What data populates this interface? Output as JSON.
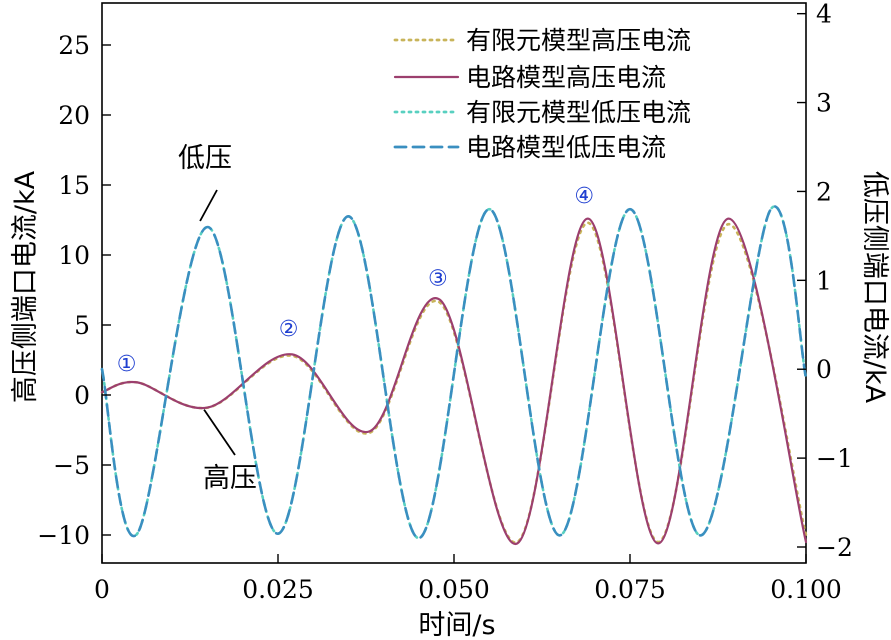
{
  "chart_data": {
    "type": "line",
    "xlabel": "时间/s",
    "ylabel_left": "高压侧端口电流/kA",
    "ylabel_right": "低压侧端口电流/kA",
    "xlim": [
      0,
      0.1
    ],
    "ylim_left": [
      -12,
      28
    ],
    "ylim_right": [
      -2.18,
      4.12
    ],
    "x_ticks": [
      0,
      0.025,
      0.05,
      0.075,
      0.1
    ],
    "x_tick_labels": [
      "0",
      "0.025",
      "0.050",
      "0.075",
      "0.100"
    ],
    "y_left_ticks": [
      -10,
      -5,
      0,
      5,
      10,
      15,
      20,
      25
    ],
    "y_left_tick_labels": [
      "−10",
      "−5",
      "0",
      "5",
      "10",
      "15",
      "20",
      "25"
    ],
    "y_right_ticks": [
      -2,
      -1,
      0,
      1,
      2,
      3,
      4
    ],
    "y_right_tick_labels": [
      "−2",
      "−1",
      "0",
      "1",
      "2",
      "3",
      "4"
    ],
    "grid": false,
    "legend_position": "top-right",
    "series": [
      {
        "name": "有限元模型高压电流",
        "axis": "left",
        "color": "#c8b45a",
        "style": "dotted",
        "x": [
          0,
          0.005,
          0.015,
          0.027,
          0.038,
          0.048,
          0.059,
          0.069,
          0.079,
          0.089,
          0.1
        ],
        "y": [
          0.2,
          0.9,
          -0.9,
          2.8,
          -2.7,
          6.6,
          -10.5,
          12.3,
          -10.5,
          12.2,
          -10.0
        ]
      },
      {
        "name": "电路模型高压电流",
        "axis": "left",
        "color": "#9c3f6e",
        "style": "solid",
        "x": [
          0,
          0.005,
          0.015,
          0.027,
          0.038,
          0.048,
          0.059,
          0.069,
          0.079,
          0.089,
          0.1
        ],
        "y": [
          0.2,
          0.9,
          -0.9,
          2.9,
          -2.6,
          6.8,
          -10.6,
          12.6,
          -10.6,
          12.6,
          -10.5
        ]
      },
      {
        "name": "有限元模型低压电流",
        "axis": "right",
        "color": "#58d0c0",
        "style": "dotted",
        "x": [
          0,
          0.005,
          0.015,
          0.025,
          0.035,
          0.045,
          0.055,
          0.065,
          0.075,
          0.085,
          0.095,
          0.1
        ],
        "y": [
          0.0,
          -1.85,
          1.6,
          -1.85,
          1.72,
          -1.9,
          1.8,
          -1.87,
          1.8,
          -1.87,
          1.8,
          -0.1
        ]
      },
      {
        "name": "电路模型低压电流",
        "axis": "right",
        "color": "#3a8fc0",
        "style": "dashed",
        "x": [
          0,
          0.005,
          0.015,
          0.025,
          0.035,
          0.045,
          0.055,
          0.065,
          0.075,
          0.085,
          0.095,
          0.1
        ],
        "y": [
          0.0,
          -1.85,
          1.6,
          -1.85,
          1.72,
          -1.9,
          1.8,
          -1.87,
          1.8,
          -1.87,
          1.8,
          -0.1
        ]
      }
    ],
    "annotations": [
      {
        "text": "低压",
        "target_x": 0.0145,
        "target_y_right": 1.6,
        "target_axis": "right"
      },
      {
        "text": "高压",
        "target_x": 0.0145,
        "target_y_left": -0.9,
        "target_axis": "left"
      }
    ],
    "markers": [
      {
        "text": "①",
        "x": 0.0035,
        "y_left": 2.3
      },
      {
        "text": "②",
        "x": 0.0265,
        "y_left": 4.8
      },
      {
        "text": "③",
        "x": 0.0477,
        "y_left": 8.4
      },
      {
        "text": "④",
        "x": 0.0685,
        "y_left": 14.3
      }
    ]
  }
}
